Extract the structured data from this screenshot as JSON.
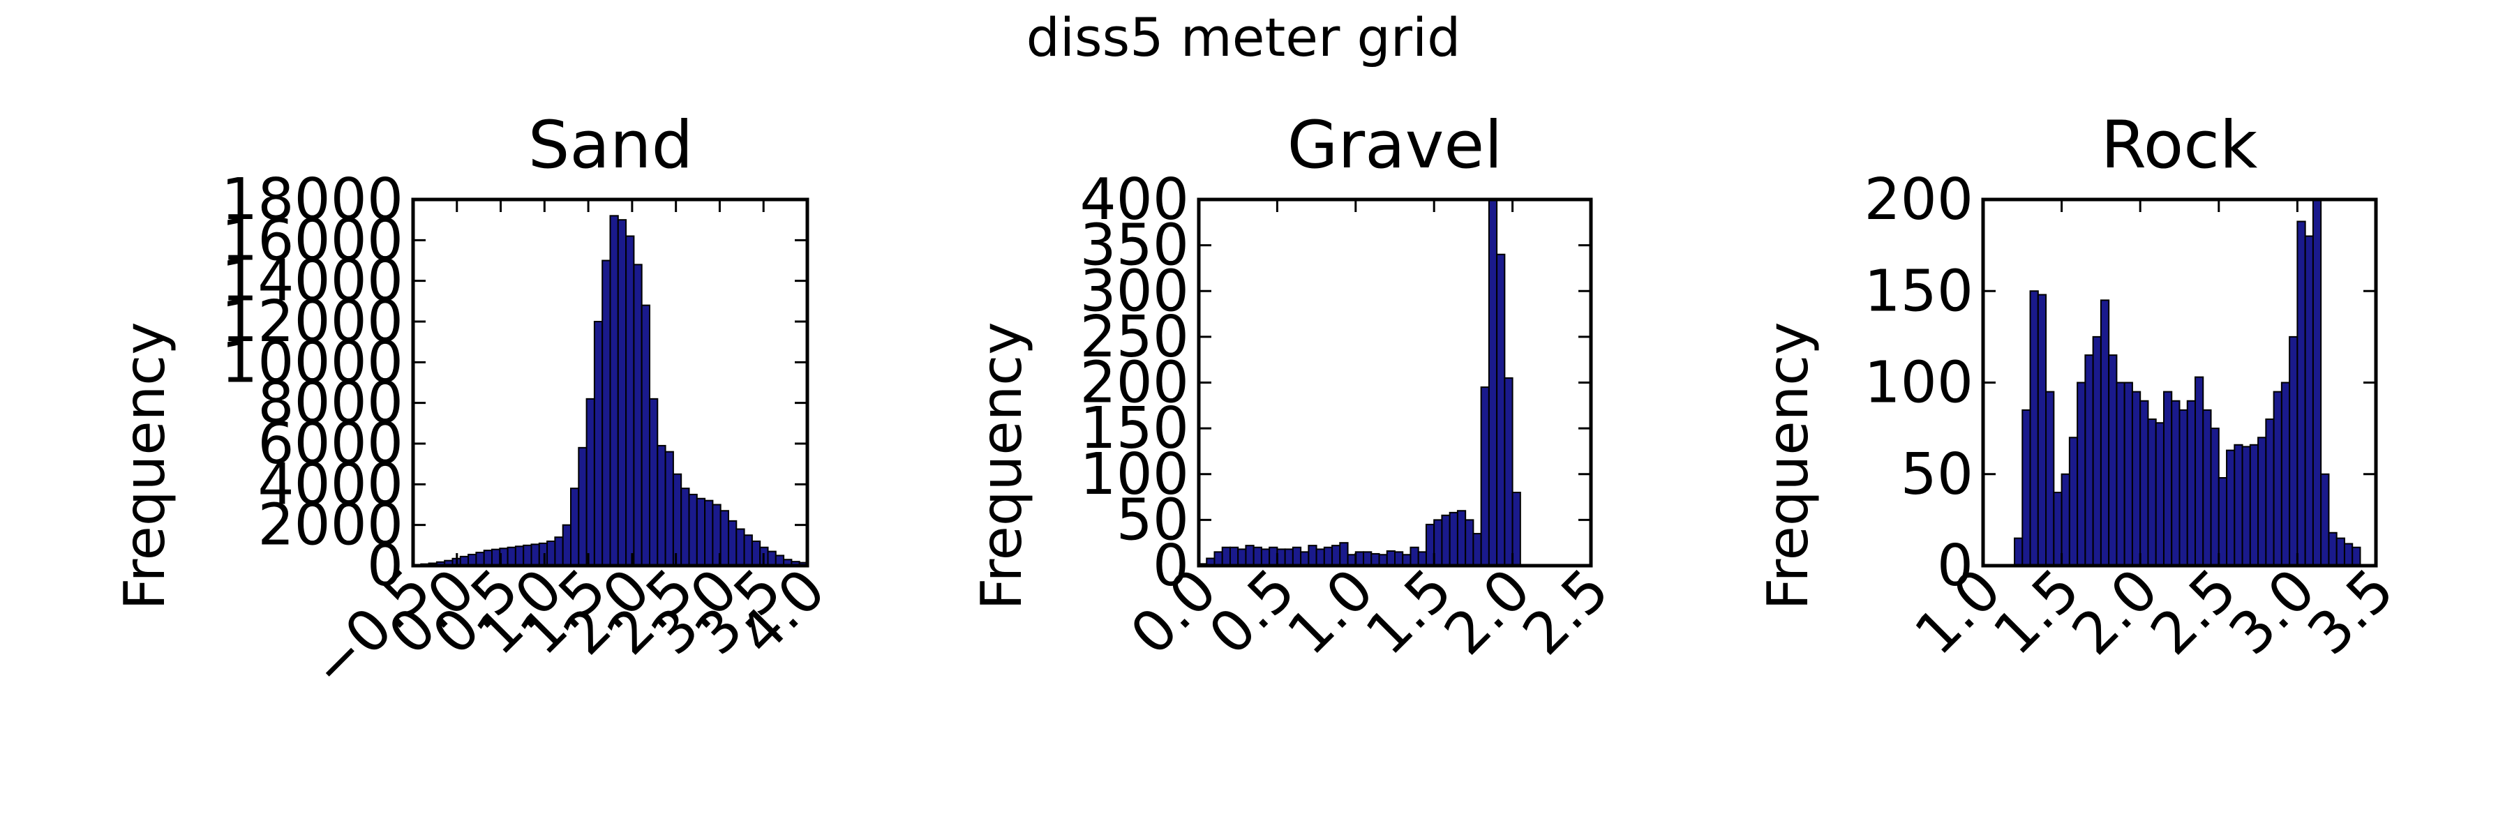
{
  "figure": {
    "suptitle": "diss5 meter grid"
  },
  "style": {
    "bar_fill": "#1a1a8c",
    "bar_edge": "#000000",
    "axes_color": "#000000",
    "background": "#ffffff"
  },
  "chart_data": [
    {
      "type": "bar",
      "title": "Sand",
      "xlabel": "",
      "ylabel": "Frequency",
      "xlim": [
        -0.5,
        4.0
      ],
      "ylim": [
        0,
        18000
      ],
      "grid": false,
      "xticks": [
        -0.5,
        0.0,
        0.5,
        1.0,
        1.5,
        2.0,
        2.5,
        3.0,
        3.5,
        4.0
      ],
      "xtick_labels": [
        "−0.5",
        "0.0",
        "0.5",
        "1.0",
        "1.5",
        "2.0",
        "2.5",
        "3.0",
        "3.5",
        "4.0"
      ],
      "yticks": [
        0,
        2000,
        4000,
        6000,
        8000,
        10000,
        12000,
        14000,
        16000,
        18000
      ],
      "ytick_labels": [
        "0",
        "2000",
        "4000",
        "6000",
        "8000",
        "10000",
        "12000",
        "14000",
        "16000",
        "18000"
      ],
      "bin_start": -0.5,
      "bin_width": 0.09,
      "values": [
        50,
        80,
        120,
        180,
        250,
        350,
        450,
        550,
        650,
        750,
        800,
        850,
        900,
        950,
        1000,
        1050,
        1100,
        1200,
        1400,
        2000,
        3800,
        5800,
        8200,
        12000,
        15000,
        17200,
        17000,
        16200,
        14800,
        12800,
        8200,
        5900,
        5600,
        4500,
        3800,
        3500,
        3300,
        3200,
        3000,
        2700,
        2200,
        1800,
        1500,
        1200,
        900,
        700,
        500,
        300,
        200,
        150
      ]
    },
    {
      "type": "bar",
      "title": "Gravel",
      "xlabel": "",
      "ylabel": "Frequency",
      "xlim": [
        0.0,
        2.5
      ],
      "ylim": [
        0,
        400
      ],
      "grid": false,
      "xticks": [
        0.0,
        0.5,
        1.0,
        1.5,
        2.0,
        2.5
      ],
      "xtick_labels": [
        "0.0",
        "0.5",
        "1.0",
        "1.5",
        "2.0",
        "2.5"
      ],
      "yticks": [
        0,
        50,
        100,
        150,
        200,
        250,
        300,
        350,
        400
      ],
      "ytick_labels": [
        "0",
        "50",
        "100",
        "150",
        "200",
        "250",
        "300",
        "350",
        "400"
      ],
      "bin_start": 0.0,
      "bin_width": 0.05,
      "values": [
        2,
        8,
        15,
        20,
        20,
        18,
        22,
        20,
        18,
        20,
        18,
        18,
        20,
        15,
        22,
        18,
        20,
        22,
        25,
        12,
        15,
        15,
        13,
        12,
        16,
        15,
        12,
        20,
        15,
        45,
        50,
        55,
        58,
        60,
        50,
        35,
        195,
        400,
        340,
        205,
        80,
        0,
        0,
        0,
        0,
        0,
        0,
        0,
        0,
        0
      ]
    },
    {
      "type": "bar",
      "title": "Rock",
      "xlabel": "",
      "ylabel": "Frequency",
      "xlim": [
        1.0,
        3.5
      ],
      "ylim": [
        0,
        200
      ],
      "grid": false,
      "xticks": [
        1.0,
        1.5,
        2.0,
        2.5,
        3.0,
        3.5
      ],
      "xtick_labels": [
        "1.0",
        "1.5",
        "2.0",
        "2.5",
        "3.0",
        "3.5"
      ],
      "yticks": [
        0,
        50,
        100,
        150,
        200
      ],
      "yticks_dup": [],
      "ytick_labels": [
        "0",
        "50",
        "100",
        "150",
        "200"
      ],
      "bin_start": 1.0,
      "bin_width": 0.05,
      "values": [
        0,
        0,
        0,
        0,
        15,
        85,
        150,
        148,
        95,
        40,
        50,
        70,
        100,
        115,
        125,
        145,
        115,
        100,
        100,
        95,
        90,
        80,
        78,
        95,
        90,
        85,
        90,
        103,
        85,
        75,
        48,
        63,
        66,
        65,
        66,
        70,
        80,
        95,
        100,
        125,
        188,
        180,
        200,
        50,
        18,
        15,
        12,
        10
      ]
    }
  ]
}
